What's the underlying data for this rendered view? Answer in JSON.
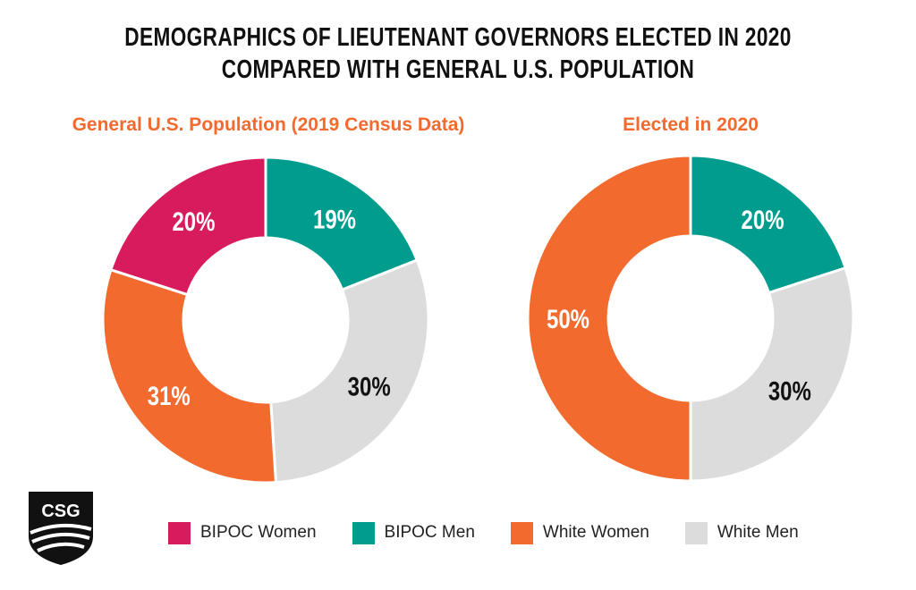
{
  "title_line1": "DEMOGRAPHICS OF LIEUTENANT GOVERNORS ELECTED IN 2020",
  "title_line2": "COMPARED WITH GENERAL U.S. POPULATION",
  "logo_text": "CSG",
  "colors": {
    "bipoc_women": "#d81b5c",
    "bipoc_men": "#009c8e",
    "white_women": "#f26a2d",
    "white_men": "#dcdcdc",
    "title_accent": "#f26a2d"
  },
  "legend": [
    {
      "label": "BIPOC Women",
      "color": "#d81b5c"
    },
    {
      "label": "BIPOC Men",
      "color": "#009c8e"
    },
    {
      "label": "White Women",
      "color": "#f26a2d"
    },
    {
      "label": "White Men",
      "color": "#dcdcdc"
    }
  ],
  "chart_data": [
    {
      "type": "pie",
      "title": "General U.S. Population (2019 Census Data)",
      "categories": [
        "BIPOC Men",
        "White Men",
        "White Women",
        "BIPOC Women"
      ],
      "values": [
        19,
        30,
        31,
        20
      ],
      "labels": [
        "19%",
        "30%",
        "31%",
        "20%"
      ],
      "colors": [
        "#009c8e",
        "#dcdcdc",
        "#f26a2d",
        "#d81b5c"
      ],
      "label_colors": [
        "#ffffff",
        "#111111",
        "#ffffff",
        "#ffffff"
      ]
    },
    {
      "type": "pie",
      "title": "Elected in 2020",
      "categories": [
        "BIPOC Men",
        "White Men",
        "White Women"
      ],
      "values": [
        20,
        30,
        50
      ],
      "labels": [
        "20%",
        "30%",
        "50%"
      ],
      "colors": [
        "#009c8e",
        "#dcdcdc",
        "#f26a2d"
      ],
      "label_colors": [
        "#ffffff",
        "#111111",
        "#ffffff"
      ]
    }
  ]
}
